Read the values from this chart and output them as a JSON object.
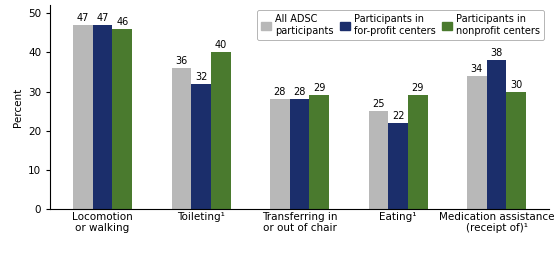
{
  "categories": [
    "Locomotion\nor walking",
    "Toileting¹",
    "Transferring in\nor out of chair",
    "Eating¹",
    "Medication assistance\n(receipt of)¹"
  ],
  "series": {
    "All ADSC\nparticipants": [
      47,
      36,
      28,
      25,
      34
    ],
    "Participants in\nfor-profit centers": [
      47,
      32,
      28,
      22,
      38
    ],
    "Participants in\nnonprofit centers": [
      46,
      40,
      29,
      29,
      30
    ]
  },
  "colors": {
    "All ADSC\nparticipants": "#b8b8b8",
    "Participants in\nfor-profit centers": "#1b2e6b",
    "Participants in\nnonprofit centers": "#4a7a2e"
  },
  "legend_labels": [
    "All ADSC\nparticipants",
    "Participants in\nfor-profit centers",
    "Participants in\nnonprofit centers"
  ],
  "ylabel": "Percent",
  "ylim": [
    0,
    52
  ],
  "yticks": [
    0,
    10,
    20,
    30,
    40,
    50
  ],
  "bar_width": 0.2,
  "label_fontsize": 7.5,
  "tick_fontsize": 7.5,
  "value_fontsize": 7.0,
  "legend_fontsize": 7.0,
  "background_color": "#ffffff",
  "border_color": "#000000"
}
